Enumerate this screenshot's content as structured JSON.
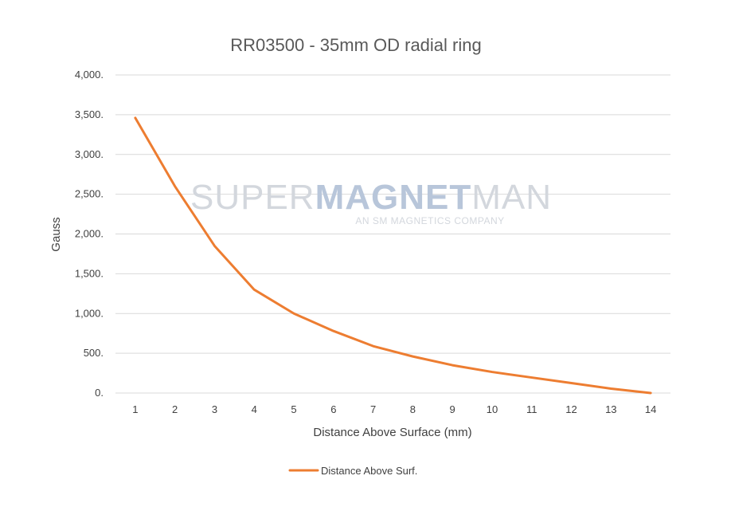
{
  "chart_data": {
    "type": "line",
    "title": "RR03500 - 35mm OD radial ring",
    "xlabel": "Distance Above Surface (mm)",
    "ylabel": "Gauss",
    "x": [
      1,
      2,
      3,
      4,
      5,
      6,
      7,
      8,
      9,
      10,
      11,
      12,
      13,
      14
    ],
    "y_ticks": [
      "0.",
      "500.",
      "1,000.",
      "1,500.",
      "2,000.",
      "2,500.",
      "3,000.",
      "3,500.",
      "4,000."
    ],
    "ylim": [
      0,
      4000
    ],
    "grid": true,
    "legend_position": "bottom",
    "series": [
      {
        "name": "Distance Above Surf.",
        "color": "#ed7d31",
        "values": [
          3460,
          2600,
          1850,
          1300,
          1000,
          780,
          590,
          460,
          350,
          265,
          195,
          125,
          55,
          0
        ]
      }
    ]
  },
  "watermark": {
    "word1": "SUPER",
    "word2": "MAGNET",
    "word3": "MAN",
    "tagline": "AN SM MAGNETICS COMPANY"
  }
}
